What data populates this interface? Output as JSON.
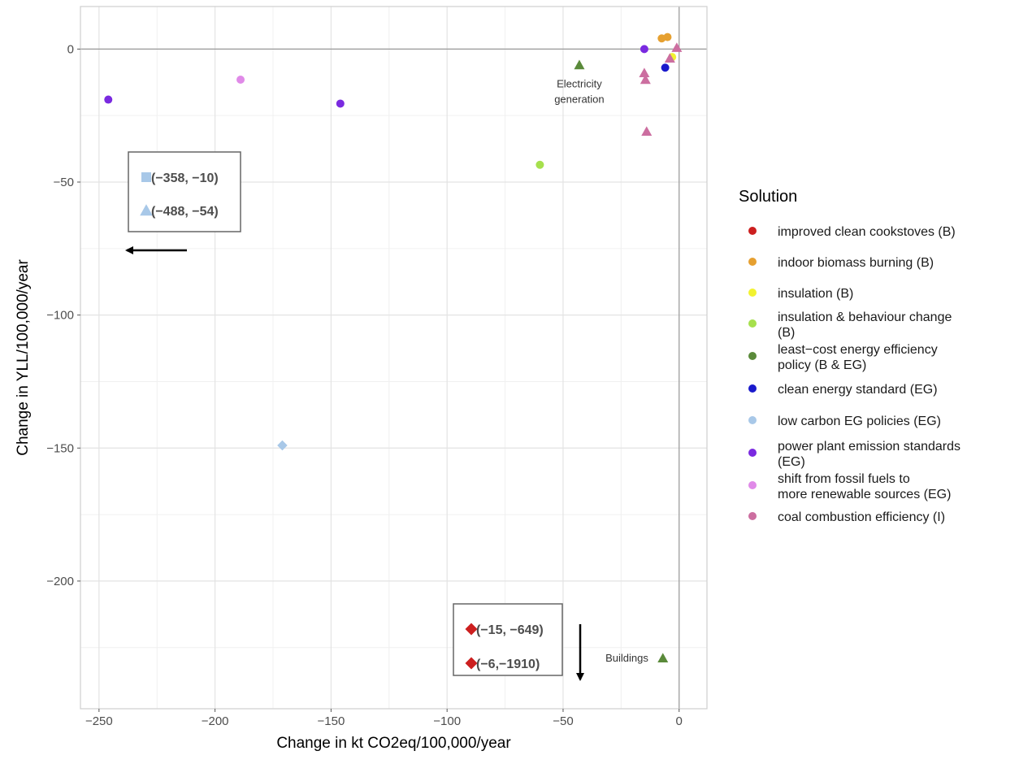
{
  "chart_data": {
    "type": "scatter",
    "xlabel": "Change in kt CO2eq/100,000/year",
    "ylabel": "Change in YLL/100,000/year",
    "xlim": [
      -258,
      12
    ],
    "ylim": [
      -248,
      16
    ],
    "xticks": [
      -250,
      -200,
      -150,
      -100,
      -50,
      0
    ],
    "xtick_labels": [
      "−250",
      "−200",
      "−150",
      "−100",
      "−50",
      "0"
    ],
    "yticks": [
      0,
      -50,
      -100,
      -150,
      -200
    ],
    "ytick_labels": [
      "0",
      "−50",
      "−100",
      "−150",
      "−200"
    ],
    "minor_xticks": [
      -225,
      -175,
      -125,
      -75,
      -25
    ],
    "minor_yticks": [
      -25,
      -75,
      -125,
      -175,
      -225
    ],
    "grid": true,
    "zero_lines": true,
    "legend": {
      "title": "Solution",
      "placement": "right",
      "entries": [
        {
          "key": "icc",
          "label": [
            "improved clean cookstoves (B)"
          ],
          "color": "#cc1f1f"
        },
        {
          "key": "ibb",
          "label": [
            "indoor biomass burning (B)"
          ],
          "color": "#e6a030"
        },
        {
          "key": "ins",
          "label": [
            "insulation (B)"
          ],
          "color": "#f2f230"
        },
        {
          "key": "ibc",
          "label": [
            "insulation & behaviour change",
            "(B)"
          ],
          "color": "#a6e04d"
        },
        {
          "key": "lce",
          "label": [
            "least−cost energy efficiency",
            "policy (B & EG)"
          ],
          "color": "#5a8a3a"
        },
        {
          "key": "ces",
          "label": [
            "clean energy standard (EG)"
          ],
          "color": "#1a1acc"
        },
        {
          "key": "lcp",
          "label": [
            "low carbon EG policies (EG)"
          ],
          "color": "#a8c8e8"
        },
        {
          "key": "pps",
          "label": [
            "power plant emission standards",
            "(EG)"
          ],
          "color": "#7a2ae0"
        },
        {
          "key": "sff",
          "label": [
            "shift from fossil fuels to",
            "more renewable sources (EG)"
          ],
          "color": "#e08ae8"
        },
        {
          "key": "cce",
          "label": [
            "coal combustion efficiency (I)"
          ],
          "color": "#cc6ea0"
        }
      ]
    },
    "points": [
      {
        "series": "pps",
        "x": -246,
        "y": -19,
        "shape": "circle"
      },
      {
        "series": "pps",
        "x": -146,
        "y": -20.5,
        "shape": "circle"
      },
      {
        "series": "pps",
        "x": -15,
        "y": 0,
        "shape": "circle"
      },
      {
        "series": "sff",
        "x": -189,
        "y": -11.5,
        "shape": "circle"
      },
      {
        "series": "ibc",
        "x": -60,
        "y": -43.5,
        "shape": "circle"
      },
      {
        "series": "lcp",
        "x": -171,
        "y": -149,
        "shape": "diamond"
      },
      {
        "series": "lce",
        "x": -43,
        "y": -6,
        "shape": "triangle"
      },
      {
        "series": "lce",
        "x": -7,
        "y": -229,
        "shape": "triangle"
      },
      {
        "series": "ibb",
        "x": -7.5,
        "y": 4,
        "shape": "circle"
      },
      {
        "series": "ibb",
        "x": -5,
        "y": 4.5,
        "shape": "circle"
      },
      {
        "series": "ins",
        "x": -3,
        "y": -3,
        "shape": "circle"
      },
      {
        "series": "ces",
        "x": -6,
        "y": -7,
        "shape": "circle"
      },
      {
        "series": "cce",
        "x": -15,
        "y": -9,
        "shape": "triangle"
      },
      {
        "series": "cce",
        "x": -14.5,
        "y": -11.5,
        "shape": "triangle"
      },
      {
        "series": "cce",
        "x": -14,
        "y": -31,
        "shape": "triangle"
      },
      {
        "series": "cce",
        "x": -4,
        "y": -3.5,
        "shape": "triangle"
      },
      {
        "series": "cce",
        "x": -1,
        "y": 0.5,
        "shape": "triangle"
      }
    ],
    "annotations": [
      {
        "lines": [
          "Electricity",
          "generation"
        ],
        "x": -43,
        "y": -16
      },
      {
        "lines": [
          "Buildings"
        ],
        "x": -22.5,
        "y": -229
      }
    ],
    "offscale_boxes": [
      {
        "arrow": "left",
        "items": [
          {
            "series": "lcp",
            "shape": "square",
            "label": "(−358, −10)"
          },
          {
            "series": "lcp",
            "shape": "triangle",
            "label": "(−488, −54)"
          }
        ]
      },
      {
        "arrow": "down",
        "items": [
          {
            "series": "icc",
            "shape": "diamond",
            "label": "(−15, −649)"
          },
          {
            "series": "icc",
            "shape": "diamond",
            "label": "(−6,−1910)"
          }
        ]
      }
    ]
  }
}
